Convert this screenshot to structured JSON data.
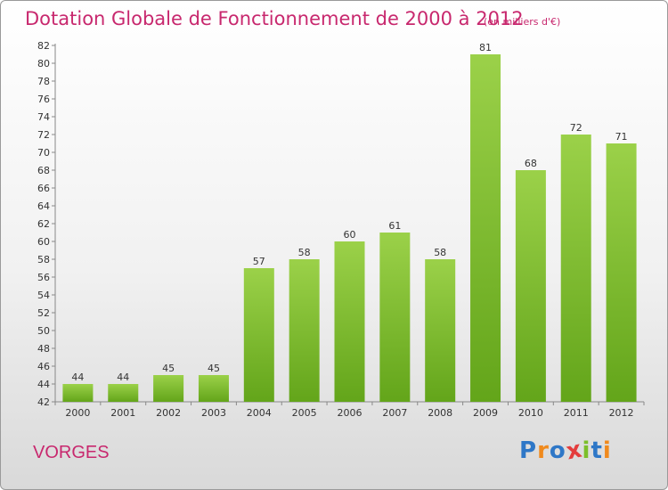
{
  "header": {
    "title": "Dotation Globale de Fonctionnement de 2000 à 2012",
    "subtitle": "(en milliers d'€)"
  },
  "footer": {
    "commune": "VORGES",
    "logo_text": "Proxiti"
  },
  "colors": {
    "title": "#c8286e",
    "bar_top": "#9bd149",
    "bar_bottom": "#63a51a",
    "logo": [
      "#2e77c7",
      "#f08a1d",
      "#2e77c7",
      "#e43d3d",
      "#7cbf2a",
      "#2e77c7",
      "#f08a1d"
    ]
  },
  "chart_data": {
    "type": "bar",
    "title": "Dotation Globale de Fonctionnement de 2000 à 2012",
    "subtitle": "(en milliers d'€)",
    "categories": [
      "2000",
      "2001",
      "2002",
      "2003",
      "2004",
      "2005",
      "2006",
      "2007",
      "2008",
      "2009",
      "2010",
      "2011",
      "2012"
    ],
    "values": [
      44,
      44,
      45,
      45,
      57,
      58,
      60,
      61,
      58,
      81,
      68,
      72,
      71
    ],
    "ylim": [
      42,
      82
    ],
    "yticks": [
      42,
      44,
      46,
      48,
      50,
      52,
      54,
      56,
      58,
      60,
      62,
      64,
      66,
      68,
      70,
      72,
      74,
      76,
      78,
      80,
      82
    ],
    "grid": false,
    "legend": "none",
    "data_labels": true
  }
}
